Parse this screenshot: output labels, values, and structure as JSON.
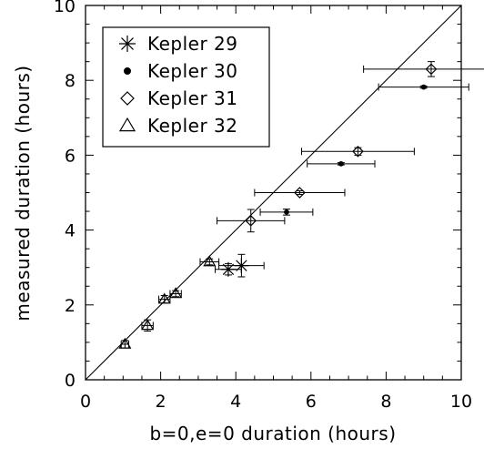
{
  "chart_data": {
    "type": "scatter",
    "title": "",
    "xlabel": "b=0,e=0 duration (hours)",
    "ylabel": "measured duration (hours)",
    "xlim": [
      0,
      10
    ],
    "ylim": [
      0,
      10
    ],
    "xticks": [
      "0",
      "2",
      "4",
      "6",
      "8",
      "10"
    ],
    "yticks": [
      "0",
      "2",
      "4",
      "6",
      "8",
      "10"
    ],
    "grid": false,
    "legend_position": "top-left",
    "reference_line": {
      "from": [
        0,
        0
      ],
      "to": [
        10,
        10
      ]
    },
    "series": [
      {
        "name": "Kepler 29",
        "marker": "asterisk",
        "points": [
          {
            "x": 3.8,
            "y": 2.95,
            "xerr": 0.35,
            "yerr": 0.15
          },
          {
            "x": 4.15,
            "y": 3.05,
            "xerr": 0.6,
            "yerr": 0.3
          }
        ]
      },
      {
        "name": "Kepler 30",
        "marker": "dot",
        "points": [
          {
            "x": 5.35,
            "y": 4.48,
            "xerr": 0.7,
            "yerr": 0.08
          },
          {
            "x": 6.8,
            "y": 5.77,
            "xerr": 0.9,
            "yerr": 0.03
          },
          {
            "x": 9.0,
            "y": 7.82,
            "xerr": 1.2,
            "yerr": 0.03
          }
        ]
      },
      {
        "name": "Kepler 31",
        "marker": "diamond",
        "points": [
          {
            "x": 4.4,
            "y": 4.25,
            "xerr": 0.9,
            "yerr": 0.3
          },
          {
            "x": 5.7,
            "y": 5.0,
            "xerr": 1.2,
            "yerr": 0.05
          },
          {
            "x": 7.25,
            "y": 6.1,
            "xerr": 1.5,
            "yerr": 0.1
          },
          {
            "x": 9.2,
            "y": 8.3,
            "xerr": 1.8,
            "yerr": 0.2
          }
        ]
      },
      {
        "name": "Kepler 32",
        "marker": "triangle",
        "points": [
          {
            "x": 1.05,
            "y": 0.95,
            "xerr": 0.1,
            "yerr": 0.1
          },
          {
            "x": 1.65,
            "y": 1.45,
            "xerr": 0.15,
            "yerr": 0.15
          },
          {
            "x": 2.1,
            "y": 2.15,
            "xerr": 0.15,
            "yerr": 0.1
          },
          {
            "x": 2.4,
            "y": 2.3,
            "xerr": 0.15,
            "yerr": 0.08
          },
          {
            "x": 3.3,
            "y": 3.15,
            "xerr": 0.25,
            "yerr": 0.08
          }
        ]
      }
    ]
  }
}
